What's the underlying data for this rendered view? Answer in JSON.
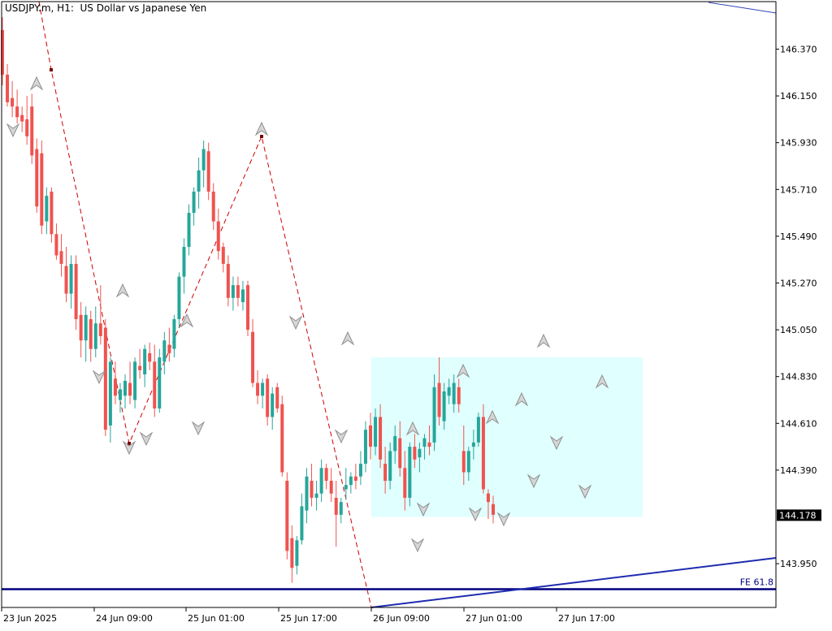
{
  "chart_title": "USDJPY.m, H1:  US Dollar vs Japanese Yen",
  "chart_data": {
    "type": "candlestick",
    "symbol": "USDJPY.m",
    "timeframe": "H1",
    "description": "US Dollar vs Japanese Yen",
    "y_ticks": [
      "146.370",
      "146.150",
      "145.930",
      "145.710",
      "145.490",
      "145.270",
      "145.050",
      "144.830",
      "144.610",
      "144.390",
      "143.950"
    ],
    "y_tick_values": [
      146.37,
      146.15,
      145.93,
      145.71,
      145.49,
      145.27,
      145.05,
      144.83,
      144.61,
      144.39,
      143.95
    ],
    "x_ticks": [
      "23 Jun 2025",
      "24 Jun 09:00",
      "25 Jun 01:00",
      "25 Jun 17:00",
      "26 Jun 09:00",
      "27 Jun 01:00",
      "27 Jun 17:00"
    ],
    "current_price": "144.178",
    "fib_label": "FE 61.8",
    "fib_level": 143.83,
    "range_box": {
      "price_top": 144.92,
      "price_bottom": 144.17
    },
    "colors": {
      "bull": "#26a69a",
      "bear": "#ef5350",
      "zigzag": "#cc0000",
      "fib": "#000080",
      "box": "#e0ffff",
      "fractal": "#9a9a9a"
    },
    "candles": [
      [
        146.46,
        146.52,
        146.2,
        146.25
      ],
      [
        146.25,
        146.3,
        146.1,
        146.12
      ],
      [
        146.14,
        146.22,
        146.05,
        146.1
      ],
      [
        146.1,
        146.18,
        146.02,
        146.05
      ],
      [
        146.06,
        146.1,
        145.98,
        146.03
      ],
      [
        146.04,
        146.15,
        145.92,
        145.96
      ],
      [
        146.1,
        146.16,
        145.83,
        145.87
      ],
      [
        145.9,
        145.95,
        145.6,
        145.63
      ],
      [
        145.88,
        145.94,
        145.5,
        145.54
      ],
      [
        145.56,
        145.72,
        145.5,
        145.68
      ],
      [
        145.7,
        145.72,
        145.46,
        145.5
      ],
      [
        145.5,
        145.55,
        145.38,
        145.4
      ],
      [
        145.42,
        145.5,
        145.3,
        145.36
      ],
      [
        145.35,
        145.44,
        145.18,
        145.22
      ],
      [
        145.22,
        145.4,
        145.15,
        145.36
      ],
      [
        145.36,
        145.4,
        145.05,
        145.1
      ],
      [
        145.12,
        145.18,
        144.92,
        145.0
      ],
      [
        145.0,
        145.16,
        144.9,
        145.12
      ],
      [
        145.1,
        145.14,
        144.9,
        144.96
      ],
      [
        144.96,
        145.16,
        144.92,
        145.08
      ],
      [
        145.08,
        145.26,
        144.98,
        145.02
      ],
      [
        145.06,
        145.1,
        144.55,
        144.58
      ],
      [
        144.6,
        144.92,
        144.52,
        144.9
      ],
      [
        144.82,
        144.9,
        144.7,
        144.74
      ],
      [
        144.72,
        144.8,
        144.66,
        144.77
      ],
      [
        144.74,
        144.84,
        144.68,
        144.81
      ],
      [
        144.8,
        144.9,
        144.7,
        144.74
      ],
      [
        144.72,
        144.92,
        144.68,
        144.9
      ],
      [
        144.88,
        144.96,
        144.82,
        144.86
      ],
      [
        144.84,
        144.98,
        144.78,
        144.96
      ],
      [
        144.94,
        144.99,
        144.86,
        144.9
      ],
      [
        144.9,
        144.98,
        144.64,
        144.68
      ],
      [
        144.68,
        144.96,
        144.66,
        144.92
      ],
      [
        144.9,
        145.04,
        144.84,
        145.0
      ],
      [
        144.98,
        145.06,
        144.9,
        144.94
      ],
      [
        144.96,
        145.12,
        144.92,
        145.1
      ],
      [
        145.1,
        145.32,
        145.06,
        145.3
      ],
      [
        145.3,
        145.48,
        145.22,
        145.44
      ],
      [
        145.44,
        145.64,
        145.4,
        145.6
      ],
      [
        145.6,
        145.72,
        145.54,
        145.7
      ],
      [
        145.7,
        145.86,
        145.62,
        145.8
      ],
      [
        145.8,
        145.94,
        145.72,
        145.9
      ],
      [
        145.89,
        145.93,
        145.66,
        145.7
      ],
      [
        145.7,
        145.74,
        145.52,
        145.56
      ],
      [
        145.56,
        145.62,
        145.38,
        145.42
      ],
      [
        145.44,
        145.46,
        145.32,
        145.36
      ],
      [
        145.36,
        145.4,
        145.16,
        145.2
      ],
      [
        145.2,
        145.3,
        145.14,
        145.26
      ],
      [
        145.26,
        145.3,
        145.16,
        145.2
      ],
      [
        145.18,
        145.28,
        145.14,
        145.24
      ],
      [
        145.26,
        145.28,
        145.02,
        145.05
      ],
      [
        145.04,
        145.1,
        144.78,
        144.8
      ],
      [
        144.8,
        144.86,
        144.7,
        144.74
      ],
      [
        144.74,
        144.82,
        144.68,
        144.8
      ],
      [
        144.82,
        144.84,
        144.6,
        144.64
      ],
      [
        144.64,
        144.78,
        144.58,
        144.75
      ],
      [
        144.78,
        144.8,
        144.66,
        144.68
      ],
      [
        144.7,
        144.74,
        144.36,
        144.38
      ],
      [
        144.34,
        144.38,
        143.97,
        144.01
      ],
      [
        144.07,
        144.13,
        143.86,
        143.93
      ],
      [
        143.94,
        144.08,
        143.9,
        144.06
      ],
      [
        144.06,
        144.28,
        144.04,
        144.22
      ],
      [
        144.2,
        144.4,
        144.14,
        144.36
      ],
      [
        144.34,
        144.42,
        144.22,
        144.26
      ],
      [
        144.26,
        144.34,
        144.2,
        144.28
      ],
      [
        144.28,
        144.44,
        144.24,
        144.4
      ],
      [
        144.4,
        144.42,
        144.3,
        144.34
      ],
      [
        144.34,
        144.4,
        144.24,
        144.28
      ],
      [
        144.26,
        144.34,
        144.03,
        144.18
      ],
      [
        144.18,
        144.26,
        144.14,
        144.24
      ],
      [
        144.3,
        144.4,
        144.25,
        144.32
      ],
      [
        144.32,
        144.38,
        144.28,
        144.36
      ],
      [
        144.36,
        144.42,
        144.3,
        144.34
      ],
      [
        144.36,
        144.48,
        144.32,
        144.42
      ],
      [
        144.42,
        144.62,
        144.38,
        144.58
      ],
      [
        144.6,
        144.66,
        144.44,
        144.5
      ],
      [
        144.5,
        144.68,
        144.46,
        144.64
      ],
      [
        144.64,
        144.7,
        144.4,
        144.44
      ],
      [
        144.42,
        144.5,
        144.28,
        144.34
      ],
      [
        144.34,
        144.52,
        144.3,
        144.48
      ],
      [
        144.48,
        144.6,
        144.42,
        144.55
      ],
      [
        144.54,
        144.62,
        144.36,
        144.4
      ],
      [
        144.4,
        144.48,
        144.2,
        144.26
      ],
      [
        144.26,
        144.52,
        144.22,
        144.5
      ],
      [
        144.5,
        144.56,
        144.4,
        144.44
      ],
      [
        144.45,
        144.52,
        144.38,
        144.49
      ],
      [
        144.5,
        144.56,
        144.44,
        144.54
      ],
      [
        144.52,
        144.6,
        144.46,
        144.5
      ],
      [
        144.52,
        144.84,
        144.48,
        144.78
      ],
      [
        144.8,
        144.92,
        144.6,
        144.64
      ],
      [
        144.62,
        144.8,
        144.58,
        144.76
      ],
      [
        144.74,
        144.82,
        144.7,
        144.78
      ],
      [
        144.7,
        144.84,
        144.66,
        144.8
      ],
      [
        144.78,
        144.82,
        144.66,
        144.7
      ],
      [
        144.48,
        144.6,
        144.32,
        144.38
      ],
      [
        144.38,
        144.5,
        144.34,
        144.48
      ],
      [
        144.5,
        144.58,
        144.44,
        144.52
      ],
      [
        144.52,
        144.66,
        144.5,
        144.64
      ],
      [
        144.64,
        144.7,
        144.28,
        144.3
      ],
      [
        144.28,
        144.3,
        144.16,
        144.24
      ],
      [
        144.23,
        144.27,
        144.14,
        144.18
      ]
    ]
  }
}
